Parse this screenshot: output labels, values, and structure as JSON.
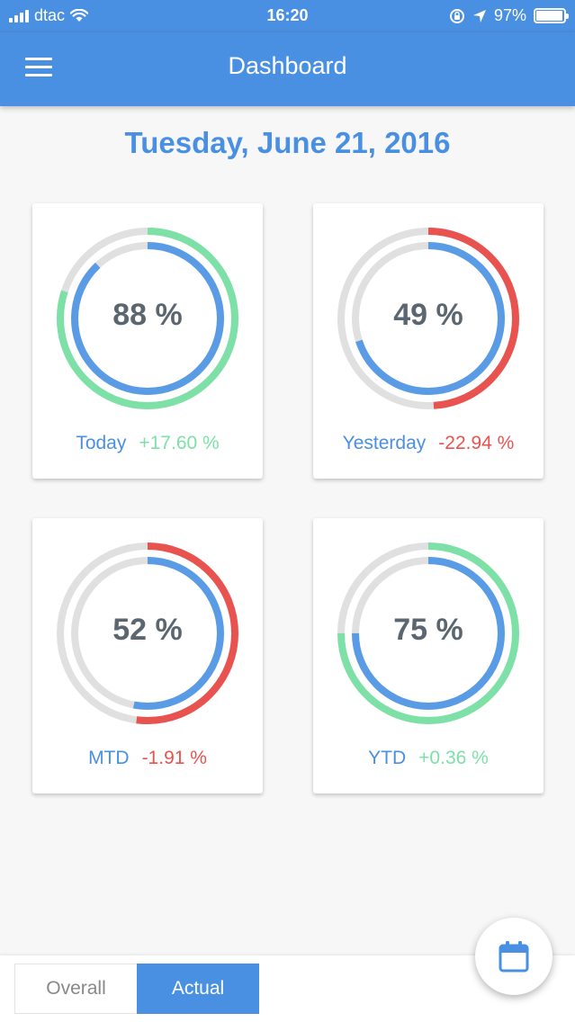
{
  "status_bar": {
    "carrier": "dtac",
    "time": "16:20",
    "battery": "97%",
    "battery_level": 0.97,
    "icons": [
      "signal-icon",
      "wifi-icon",
      "rotation-lock-icon",
      "location-icon",
      "battery-icon"
    ]
  },
  "header": {
    "title": "Dashboard",
    "menu_icon": "hamburger-menu-icon"
  },
  "date": "Tuesday, June 21, 2016",
  "colors": {
    "primary": "#4a90e2",
    "positive": "#7de0a6",
    "negative": "#e8534f",
    "track": "#e0e0e0",
    "inner": "#5a9be6",
    "text_dark": "#5b6670"
  },
  "cards": [
    {
      "label": "Today",
      "percent_text": "88 %",
      "change": "+17.60 %",
      "trend": "positive",
      "inner_fraction": 0.88,
      "outer_fraction": 0.8
    },
    {
      "label": "Yesterday",
      "percent_text": "49 %",
      "change": "-22.94 %",
      "trend": "negative",
      "inner_fraction": 0.7,
      "outer_fraction": 0.49
    },
    {
      "label": "MTD",
      "percent_text": "52 %",
      "change": "-1.91 %",
      "trend": "negative",
      "inner_fraction": 0.53,
      "outer_fraction": 0.52
    },
    {
      "label": "YTD",
      "percent_text": "75 %",
      "change": "+0.36 %",
      "trend": "positive",
      "inner_fraction": 0.75,
      "outer_fraction": 0.75
    }
  ],
  "bottom": {
    "tabs": [
      "Overall",
      "Actual"
    ],
    "selected": "Actual",
    "fab_icon": "calendar-icon"
  }
}
